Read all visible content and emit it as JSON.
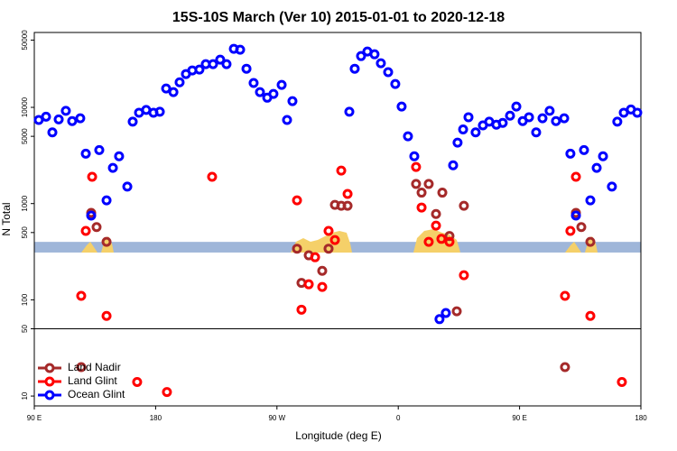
{
  "chart_data": {
    "type": "scatter",
    "title": "15S-10S March (Ver 10)   2015-01-01 to 2020-12-18",
    "x_label": "Longitude (deg E)",
    "y_label": "N Total",
    "xlim": [
      90,
      540
    ],
    "xticks": [
      {
        "value": 90,
        "label": "90 E"
      },
      180,
      {
        "value": 270,
        "label": "90 W"
      },
      {
        "value": 360,
        "label": "0"
      },
      {
        "value": 450,
        "label": "90 E"
      },
      {
        "value": 540,
        "label": "180"
      }
    ],
    "ylim": [
      7.9,
      60000
    ],
    "log_y": true,
    "yticks": [
      10,
      50,
      100,
      500,
      1000,
      5000,
      10000,
      50000
    ],
    "hline": 50,
    "band": [
      310,
      400
    ],
    "band_color": "#9fb6d9",
    "legend": "bottomleft",
    "series": [
      {
        "name": "Land Nadir",
        "color": "#a52a2a",
        "x": [
          124.8,
          132.2,
          136.2,
          143.6,
          284.9,
          288.2,
          293.6,
          303.6,
          308.3,
          313.0,
          317.7,
          322.4,
          373.2,
          377.3,
          382.6,
          388.0,
          392.7,
          398.0,
          403.4,
          408.7,
          483.7,
          491.8,
          495.8,
          502.5
        ],
        "values": [
          20,
          800,
          570,
          400,
          340,
          150,
          290,
          200,
          340,
          970,
          950,
          950,
          1600,
          1300,
          1600,
          780,
          1300,
          460,
          76,
          950,
          20,
          800,
          570,
          400
        ]
      },
      {
        "name": "Land Glint",
        "color": "#ff0000",
        "x": [
          124.8,
          128.2,
          132.9,
          143.6,
          166.3,
          188.4,
          221.9,
          284.9,
          288.2,
          293.6,
          298.3,
          303.6,
          308.3,
          313.0,
          317.7,
          322.4,
          373.2,
          377.3,
          382.6,
          388.0,
          392.0,
          398.0,
          408.7,
          483.7,
          487.7,
          491.8,
          502.5,
          525.9
        ],
        "values": [
          110,
          520,
          1900,
          68,
          14,
          11,
          1900,
          1080,
          79,
          145,
          277,
          136,
          520,
          418,
          2200,
          1260,
          2400,
          910,
          400,
          590,
          430,
          400,
          180,
          110,
          520,
          1900,
          68,
          14
        ]
      },
      {
        "name": "Ocean Glint",
        "color": "#0000ff",
        "x": [
          93.3,
          98.7,
          103.4,
          108.1,
          113.4,
          118.1,
          124.1,
          128.2,
          132.2,
          138.2,
          143.6,
          148.3,
          152.9,
          159.0,
          163.0,
          167.7,
          173.0,
          178.4,
          183.1,
          187.8,
          193.2,
          197.8,
          202.5,
          207.2,
          212.5,
          217.2,
          222.6,
          227.9,
          232.6,
          238.0,
          242.7,
          247.4,
          252.7,
          257.4,
          262.8,
          267.4,
          273.5,
          277.5,
          281.5,
          323.7,
          327.7,
          332.4,
          337.1,
          342.4,
          347.1,
          352.5,
          357.8,
          362.5,
          367.2,
          371.9,
          390.6,
          395.3,
          400.7,
          404.0,
          408.1,
          412.1,
          417.4,
          422.8,
          427.5,
          432.8,
          437.5,
          442.9,
          447.6,
          452.3,
          457.0,
          462.3,
          467.0,
          472.3,
          477.0,
          483.1,
          487.7,
          491.8,
          497.8,
          502.5,
          507.2,
          511.9,
          518.5,
          522.5,
          527.3,
          532.6,
          537.3
        ],
        "values": [
          7400,
          8000,
          5500,
          7500,
          9200,
          7200,
          7700,
          3300,
          750,
          3600,
          1080,
          2350,
          3100,
          1500,
          7100,
          8800,
          9400,
          8800,
          9000,
          15700,
          14400,
          18200,
          22200,
          24200,
          24700,
          28100,
          28100,
          31300,
          28100,
          40600,
          39700,
          25200,
          17900,
          14400,
          12600,
          13800,
          17100,
          7400,
          11600,
          9000,
          25200,
          34100,
          38000,
          35600,
          28700,
          23200,
          17500,
          10200,
          5000,
          3100,
          63,
          73,
          2500,
          4300,
          5900,
          7900,
          5500,
          6500,
          7100,
          6600,
          6900,
          8200,
          10200,
          7200,
          7900,
          5500,
          7700,
          9200,
          7200,
          7700,
          3300,
          750,
          3600,
          1080,
          2350,
          3100,
          1500,
          7100,
          8800,
          9500,
          8800
        ]
      }
    ]
  }
}
